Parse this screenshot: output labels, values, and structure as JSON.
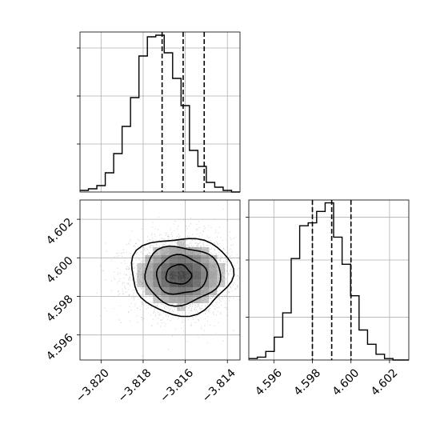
{
  "chart_data": {
    "type": "corner",
    "grid": true,
    "colors": {
      "line": "#000000",
      "grid": "#b0b0b0",
      "points": "#808080",
      "density": "#000000"
    },
    "params": [
      {
        "xlim": [
          -3.821,
          -3.8134
        ],
        "ticks": [
          -3.82,
          -3.818,
          -3.816,
          -3.814
        ],
        "tick_labels": [
          "−3.820",
          "−3.818",
          "−3.816",
          "−3.814"
        ],
        "quantiles": [
          -3.8171,
          -3.8161,
          -3.8151
        ],
        "hist_bins": [
          -3.821,
          -3.8206,
          -3.8202,
          -3.8198,
          -3.8194,
          -3.819,
          -3.8186,
          -3.8182,
          -3.8178,
          -3.8174,
          -3.817,
          -3.8166,
          -3.8162,
          -3.8158,
          -3.8154,
          -3.815,
          -3.8146,
          -3.8142,
          -3.8138,
          -3.8134
        ],
        "hist_counts": [
          1,
          2,
          4,
          12,
          24,
          41,
          59,
          85,
          97,
          98,
          87,
          71,
          54,
          26,
          16,
          6,
          3,
          1,
          0
        ],
        "hist_ymax": 100
      },
      {
        "xlim": [
          4.5947,
          4.603
        ],
        "ticks": [
          4.596,
          4.598,
          4.6,
          4.602
        ],
        "tick_labels": [
          "4.596",
          "4.598",
          "4.600",
          "4.602"
        ],
        "quantiles": [
          4.598,
          4.599,
          4.6
        ],
        "hist_bins": [
          4.5947,
          4.59514,
          4.59558,
          4.59602,
          4.59646,
          4.5969,
          4.59734,
          4.59778,
          4.59822,
          4.59866,
          4.5991,
          4.59954,
          4.59998,
          4.60042,
          4.60086,
          4.6013,
          4.60174,
          4.60218,
          4.60262,
          4.603
        ],
        "hist_counts": [
          1,
          2,
          6,
          16,
          33,
          71,
          94,
          96,
          104,
          110,
          86,
          67,
          45,
          21,
          11,
          4,
          1,
          0,
          0
        ],
        "hist_ymax": 112
      }
    ],
    "hist2d": {
      "center": [
        -3.8162,
        4.5991
      ],
      "sigma": [
        0.0012,
        0.001
      ],
      "n_points": 3500,
      "contour_levels": [
        0.118,
        0.393,
        0.675,
        0.864
      ],
      "contour_offsets": [
        [
          -0.00012,
          2e-05
        ],
        [
          0.0,
          0.0
        ],
        [
          3e-05,
          0.0
        ],
        [
          0.0,
          0.0
        ]
      ]
    }
  }
}
